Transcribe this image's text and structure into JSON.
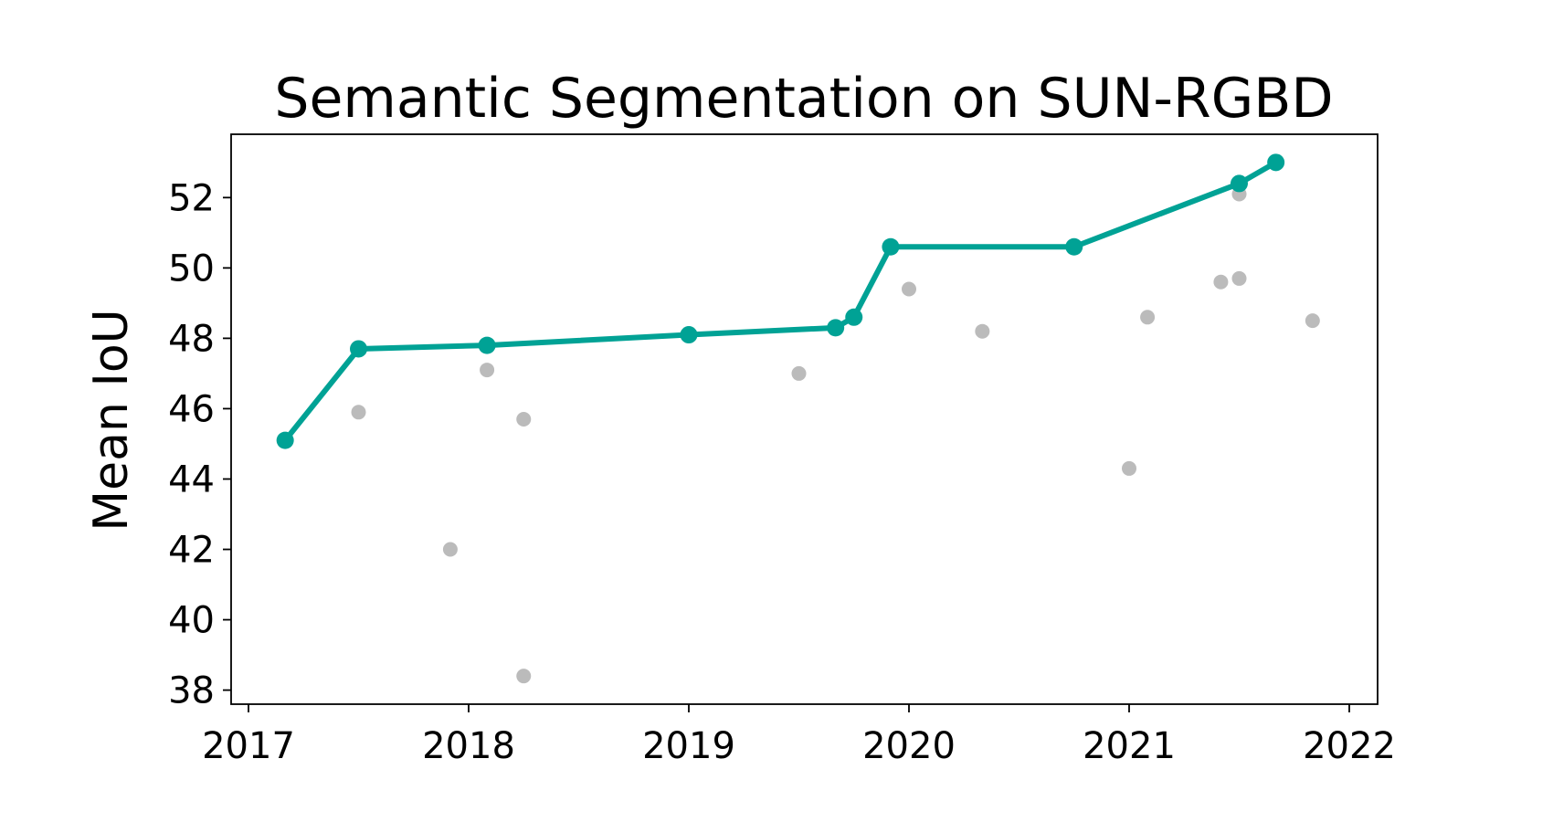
{
  "chart_data": {
    "type": "scatter",
    "title": "Semantic Segmentation on SUN-RGBD",
    "xlabel": "",
    "ylabel": "Mean IoU",
    "x_ticks": [
      "2017",
      "2018",
      "2019",
      "2020",
      "2021",
      "2022"
    ],
    "y_ticks": [
      "38",
      "40",
      "42",
      "44",
      "46",
      "48",
      "50",
      "52"
    ],
    "xlim": [
      "2017-01-01",
      "2022-01-01"
    ],
    "ylim": [
      37.6,
      53.8
    ],
    "grid": false,
    "legend": "none",
    "colors": {
      "sota": "#00a295",
      "other": "#bbbbbb"
    },
    "series": [
      {
        "role": "sota",
        "style": "line+markers",
        "points": [
          {
            "x": "2017-03",
            "y": 45.1
          },
          {
            "x": "2017-07",
            "y": 47.7
          },
          {
            "x": "2018-02",
            "y": 47.8
          },
          {
            "x": "2019-01",
            "y": 48.1
          },
          {
            "x": "2019-09",
            "y": 48.3
          },
          {
            "x": "2019-10",
            "y": 48.6
          },
          {
            "x": "2019-12",
            "y": 50.6
          },
          {
            "x": "2020-10",
            "y": 50.6
          },
          {
            "x": "2021-07",
            "y": 52.4
          },
          {
            "x": "2021-09",
            "y": 53.0
          }
        ]
      },
      {
        "role": "other",
        "style": "markers",
        "points": [
          {
            "x": "2017-07",
            "y": 45.9
          },
          {
            "x": "2017-12",
            "y": 42.0
          },
          {
            "x": "2018-02",
            "y": 47.1
          },
          {
            "x": "2018-04",
            "y": 45.7
          },
          {
            "x": "2018-04",
            "y": 38.4
          },
          {
            "x": "2019-07",
            "y": 47.0
          },
          {
            "x": "2020-01",
            "y": 49.4
          },
          {
            "x": "2020-05",
            "y": 48.2
          },
          {
            "x": "2021-01",
            "y": 44.3
          },
          {
            "x": "2021-02",
            "y": 48.6
          },
          {
            "x": "2021-06",
            "y": 49.6
          },
          {
            "x": "2021-07",
            "y": 49.7
          },
          {
            "x": "2021-07",
            "y": 52.1
          },
          {
            "x": "2021-11",
            "y": 48.5
          }
        ]
      }
    ]
  }
}
